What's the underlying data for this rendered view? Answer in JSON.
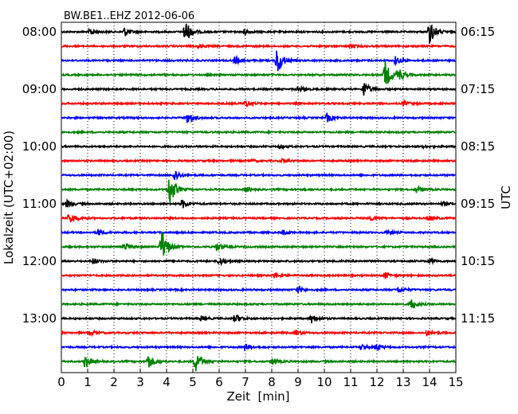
{
  "chart_data": {
    "type": "line",
    "title": "BW.BE1..EHZ 2012-06-06",
    "xlabel": "Zeit  [min]",
    "ylabel_left": "Lokalzeit (UTC+02:00)",
    "ylabel_right": "UTC",
    "xlim": [
      0,
      15
    ],
    "xticks": [
      0,
      1,
      2,
      3,
      4,
      5,
      6,
      7,
      8,
      9,
      10,
      11,
      12,
      13,
      14,
      15
    ],
    "trace_interval_min": 15,
    "trace_colors": [
      "#000000",
      "#ff0000",
      "#0000ff",
      "#008000"
    ],
    "left_labels": [
      {
        "row": 0,
        "text": "08:00"
      },
      {
        "row": 4,
        "text": "09:00"
      },
      {
        "row": 8,
        "text": "10:00"
      },
      {
        "row": 12,
        "text": "11:00"
      },
      {
        "row": 16,
        "text": "12:00"
      },
      {
        "row": 20,
        "text": "13:00"
      }
    ],
    "right_labels": [
      {
        "row": 0,
        "text": "06:15"
      },
      {
        "row": 4,
        "text": "07:15"
      },
      {
        "row": 8,
        "text": "08:15"
      },
      {
        "row": 12,
        "text": "09:15"
      },
      {
        "row": 16,
        "text": "10:15"
      },
      {
        "row": 20,
        "text": "11:15"
      }
    ],
    "traces": [
      {
        "row": 0,
        "events": [
          [
            1.1,
            0.3
          ],
          [
            2.4,
            0.35
          ],
          [
            4.7,
            1.0
          ],
          [
            6.9,
            0.25
          ],
          [
            14.0,
            1.0
          ]
        ]
      },
      {
        "row": 1,
        "events": [
          [
            5.2,
            0.15
          ],
          [
            11.0,
            0.15
          ]
        ]
      },
      {
        "row": 2,
        "events": [
          [
            6.6,
            0.35
          ],
          [
            8.2,
            1.2
          ],
          [
            12.7,
            0.3
          ]
        ]
      },
      {
        "row": 3,
        "events": [
          [
            12.3,
            1.2
          ],
          [
            12.8,
            0.6
          ]
        ]
      },
      {
        "row": 4,
        "events": [
          [
            9.0,
            0.2
          ],
          [
            11.5,
            0.6
          ]
        ]
      },
      {
        "row": 5,
        "events": [
          [
            7.0,
            0.3
          ],
          [
            13.0,
            0.2
          ]
        ]
      },
      {
        "row": 6,
        "events": [
          [
            4.8,
            0.5
          ],
          [
            10.1,
            0.35
          ]
        ]
      },
      {
        "row": 7,
        "events": []
      },
      {
        "row": 8,
        "events": [
          [
            8.3,
            0.1
          ],
          [
            13.8,
            0.1
          ]
        ]
      },
      {
        "row": 9,
        "events": [
          [
            8.4,
            0.15
          ],
          [
            7.2,
            0.1
          ]
        ]
      },
      {
        "row": 10,
        "events": [
          [
            4.3,
            0.5
          ]
        ]
      },
      {
        "row": 11,
        "events": [
          [
            4.1,
            1.4
          ],
          [
            7.0,
            0.2
          ],
          [
            13.5,
            0.25
          ]
        ]
      },
      {
        "row": 12,
        "events": [
          [
            0.2,
            0.3
          ],
          [
            4.6,
            0.35
          ],
          [
            14.5,
            0.15
          ]
        ]
      },
      {
        "row": 13,
        "events": [
          [
            0.3,
            0.5
          ],
          [
            11.8,
            0.2
          ],
          [
            14.0,
            0.2
          ]
        ]
      },
      {
        "row": 14,
        "events": [
          [
            1.4,
            0.3
          ],
          [
            8.4,
            0.2
          ],
          [
            12.4,
            0.2
          ]
        ]
      },
      {
        "row": 15,
        "events": [
          [
            2.4,
            0.35
          ],
          [
            3.8,
            1.5
          ],
          [
            5.9,
            0.3
          ]
        ]
      },
      {
        "row": 16,
        "events": [
          [
            1.2,
            0.2
          ],
          [
            6.0,
            0.3
          ],
          [
            14.0,
            0.2
          ]
        ]
      },
      {
        "row": 17,
        "events": [
          [
            8.1,
            0.25
          ],
          [
            12.3,
            0.25
          ]
        ]
      },
      {
        "row": 18,
        "events": [
          [
            9.0,
            0.25
          ],
          [
            12.8,
            0.25
          ]
        ]
      },
      {
        "row": 19,
        "events": [
          [
            13.3,
            0.45
          ]
        ]
      },
      {
        "row": 20,
        "events": [
          [
            5.3,
            0.2
          ],
          [
            6.6,
            0.35
          ],
          [
            9.5,
            0.35
          ]
        ]
      },
      {
        "row": 21,
        "events": [
          [
            1.1,
            0.2
          ],
          [
            8.9,
            0.2
          ],
          [
            13.9,
            0.2
          ]
        ]
      },
      {
        "row": 22,
        "events": [
          [
            7.0,
            0.25
          ],
          [
            11.4,
            0.2
          ],
          [
            12.0,
            0.25
          ]
        ]
      },
      {
        "row": 23,
        "events": [
          [
            0.9,
            0.5
          ],
          [
            3.3,
            0.6
          ],
          [
            5.1,
            0.9
          ],
          [
            8.0,
            0.25
          ]
        ]
      }
    ]
  }
}
